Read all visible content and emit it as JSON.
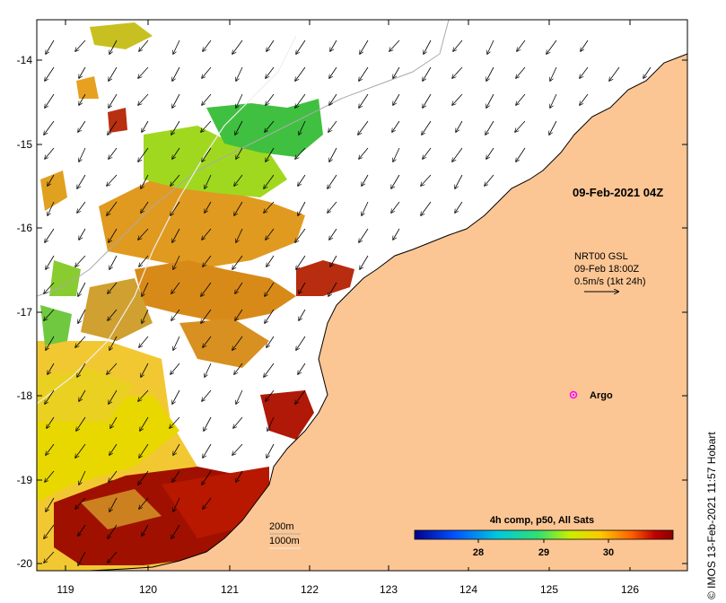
{
  "map": {
    "timestamp_label": "09-Feb-2021 04Z",
    "current_info": {
      "line1": "NRT00 GSL",
      "line2": "09-Feb 18:00Z",
      "line3": "0.5m/s (1kt 24h)"
    },
    "argo_label": "Argo",
    "bathymetry_legend": [
      "200m",
      "1000m"
    ],
    "credit": "© IMOS 13-Feb-2021 11:57 Hobart",
    "colorbar": {
      "title": "4h comp, p50, All Sats",
      "ticks": [
        "28",
        "29",
        "30"
      ],
      "colors": [
        "#00008b",
        "#0050ff",
        "#00c8e0",
        "#30e070",
        "#c8f000",
        "#ffc800",
        "#ff6000",
        "#c00000",
        "#8b0000"
      ]
    },
    "lat_ticks": [
      "-14",
      "-15",
      "-16",
      "-17",
      "-18",
      "-19",
      "-20"
    ],
    "lon_ticks": [
      "119",
      "120",
      "121",
      "122",
      "123",
      "124",
      "125",
      "126"
    ],
    "colors": {
      "land": "#fcc694",
      "argo_marker": "#ff00ff"
    }
  }
}
